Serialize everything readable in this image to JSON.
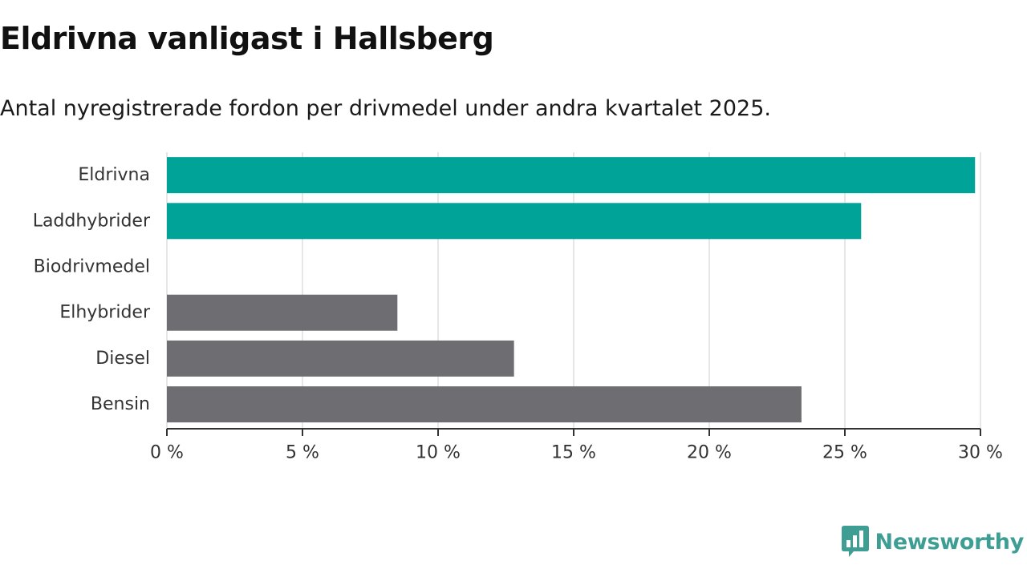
{
  "title": "Eldrivna vanligast i Hallsberg",
  "subtitle": "Antal nyregistrerade fordon per drivmedel under andra kvartalet 2025.",
  "brand": {
    "name": "Newsworthy",
    "color": "#3f9e94",
    "icon": "newsworthy-chart-bubble-icon"
  },
  "colors": {
    "highlight": "#00a398",
    "default": "#6e6d72",
    "grid": "#dddddd",
    "axis": "#333333"
  },
  "chart_data": {
    "type": "bar",
    "orientation": "horizontal",
    "categories": [
      "Eldrivna",
      "Laddhybrider",
      "Biodrivmedel",
      "Elhybrider",
      "Diesel",
      "Bensin"
    ],
    "values": [
      29.8,
      25.6,
      0,
      8.5,
      12.8,
      23.4
    ],
    "highlighted": [
      true,
      true,
      false,
      false,
      false,
      false
    ],
    "xlim": [
      0,
      30
    ],
    "x_ticks": [
      0,
      5,
      10,
      15,
      20,
      25,
      30
    ],
    "x_tick_labels": [
      "0 %",
      "5 %",
      "10 %",
      "15 %",
      "20 %",
      "25 %",
      "30 %"
    ],
    "xlabel": "",
    "ylabel": "",
    "grid": true,
    "legend": "none"
  }
}
